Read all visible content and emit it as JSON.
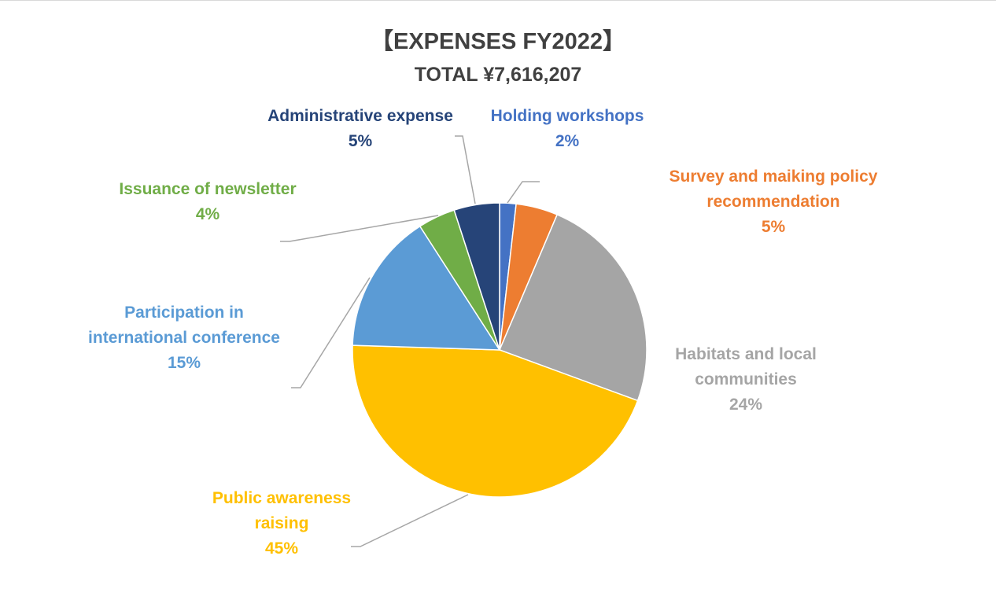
{
  "chart_data": {
    "type": "pie",
    "title": "【EXPENSES FY2022】",
    "subtitle": "TOTAL ¥7,616,207",
    "slices": [
      {
        "label": "Holding workshops",
        "percent_label": "2%",
        "value": 1.8,
        "color": "#4472c4"
      },
      {
        "label": "Survey and maiking policy recommendation",
        "percent_label": "5%",
        "value": 4.6,
        "color": "#ed7d31"
      },
      {
        "label": "Habitats and local communities",
        "percent_label": "24%",
        "value": 24.2,
        "color": "#a5a5a5"
      },
      {
        "label": "Public awareness raising",
        "percent_label": "45%",
        "value": 44.9,
        "color": "#ffc000"
      },
      {
        "label": "Participation in international conference",
        "percent_label": "15%",
        "value": 15.4,
        "color": "#5b9bd5"
      },
      {
        "label": "Issuance of newsletter",
        "percent_label": "4%",
        "value": 4.1,
        "color": "#70ad47"
      },
      {
        "label": "Administrative expense",
        "percent_label": "5%",
        "value": 5.0,
        "color": "#264478"
      }
    ],
    "legend": "none"
  }
}
